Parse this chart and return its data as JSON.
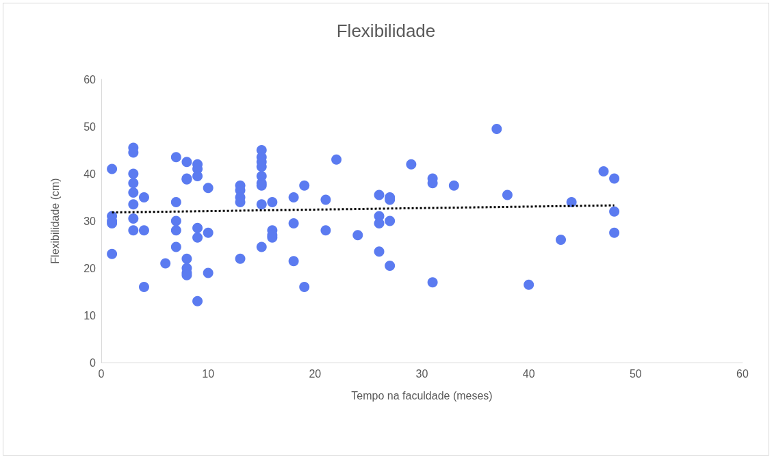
{
  "chart_data": {
    "type": "scatter",
    "title": "Flexibilidade",
    "xlabel": "Tempo na faculdade (meses)",
    "ylabel": "Flexibilidade (cm)",
    "xlim": [
      0,
      60
    ],
    "xticks": [
      0,
      10,
      20,
      30,
      40,
      50,
      60
    ],
    "ylim": [
      0,
      60
    ],
    "yticks": [
      0,
      10,
      20,
      30,
      40,
      50,
      60
    ],
    "grid": false,
    "marker": "circle",
    "series": [
      {
        "color": "#5b7bf0",
        "x": [
          1,
          1,
          1,
          1,
          1,
          3,
          3,
          3,
          3,
          3,
          3,
          3,
          3,
          4,
          4,
          4,
          6,
          7,
          7,
          7,
          7,
          7,
          8,
          8,
          8,
          8,
          8,
          8,
          8,
          9,
          9,
          9,
          9,
          9,
          9,
          10,
          10,
          10,
          13,
          13,
          13,
          13,
          13,
          15,
          15,
          15,
          15,
          15,
          15,
          15,
          15,
          15,
          16,
          16,
          16,
          16,
          18,
          18,
          18,
          19,
          19,
          21,
          21,
          22,
          24,
          26,
          26,
          26,
          26,
          27,
          27,
          27,
          27,
          29,
          31,
          31,
          31,
          33,
          37,
          38,
          40,
          43,
          44,
          47,
          48,
          48,
          48
        ],
        "values": [
          41,
          31,
          30,
          29.5,
          23,
          45.5,
          44.5,
          40,
          38,
          36,
          33.5,
          30.5,
          28,
          35,
          28,
          16,
          21,
          43.5,
          34,
          30,
          28,
          24.5,
          42.5,
          39,
          38.8,
          22,
          20,
          19,
          18.5,
          42,
          41,
          39.5,
          28.5,
          26.5,
          13,
          37,
          27.5,
          19,
          37.5,
          36.5,
          35,
          34,
          22,
          45,
          43.5,
          42.5,
          41.5,
          39.5,
          38,
          37.5,
          33.5,
          24.5,
          34,
          28,
          27,
          26.5,
          35,
          29.5,
          21.5,
          37.5,
          16,
          34.5,
          28,
          43,
          27,
          35.5,
          31,
          29.5,
          23.5,
          35,
          34.5,
          30,
          20.5,
          42,
          39,
          38,
          17,
          37.5,
          49.5,
          35.5,
          16.5,
          26,
          34,
          40.5,
          39,
          32,
          27.5
        ]
      },
      {
        "type": "line",
        "color": "#000000",
        "line_style": "dotted",
        "marker": "none",
        "x": [
          1,
          48
        ],
        "values": [
          31.8,
          33.3
        ]
      }
    ]
  }
}
